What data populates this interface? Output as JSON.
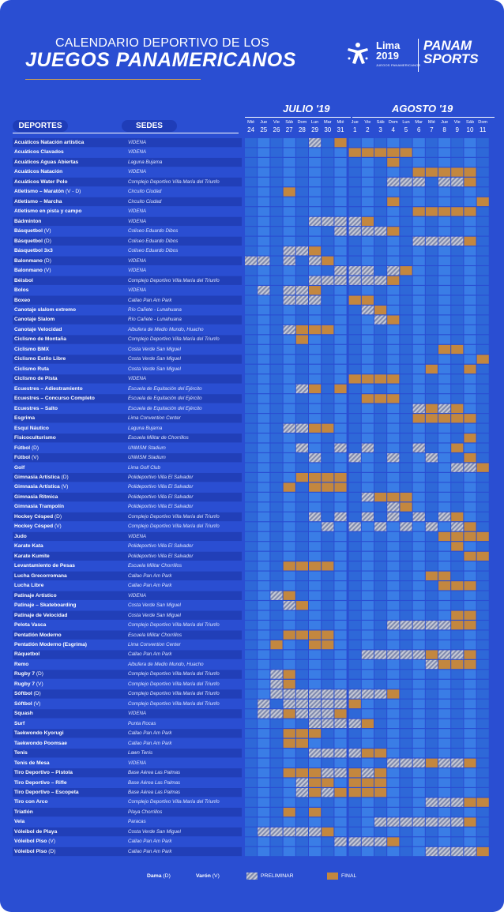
{
  "header": {
    "line1": "CALENDARIO DEPORTIVO  DE LOS",
    "line2": "JUEGOS PANAMERICANOS"
  },
  "logos": {
    "lima_word": "Lima",
    "lima_year": "2019",
    "lima_sub": "JUEGOS PANAMERICANOS",
    "panam_1": "PANAM",
    "panam_2": "SPORTS"
  },
  "months": {
    "july": "JULIO '19",
    "august": "AGOSTO '19"
  },
  "columns": {
    "sports": "DEPORTES",
    "venues": "SEDES"
  },
  "legend": {
    "dama_label": "Dama",
    "dama_code": "(D)",
    "varon_label": "Varón",
    "varon_code": "(V)",
    "preliminar": "PRELIMINAR",
    "final": "FINAL"
  },
  "colors": {
    "background": "#2a4ed2",
    "row_dark": "#213fb8",
    "cell_a": "#2e68d8",
    "cell_b": "#3a7de6",
    "final": "#c3873f",
    "preliminar_stripe": "#a0a4b6",
    "accent": "#d7a24a"
  },
  "chart_data": {
    "type": "table",
    "days": [
      {
        "dow": "Mié",
        "n": "24"
      },
      {
        "dow": "Jue",
        "n": "25"
      },
      {
        "dow": "Vie",
        "n": "26"
      },
      {
        "dow": "Sáb",
        "n": "27"
      },
      {
        "dow": "Dom",
        "n": "28"
      },
      {
        "dow": "Lun",
        "n": "29"
      },
      {
        "dow": "Mar",
        "n": "30"
      },
      {
        "dow": "Mié",
        "n": "31"
      },
      {
        "dow": "Jue",
        "n": "1"
      },
      {
        "dow": "Vie",
        "n": "2"
      },
      {
        "dow": "Sáb",
        "n": "3"
      },
      {
        "dow": "Dom",
        "n": "4"
      },
      {
        "dow": "Lun",
        "n": "5"
      },
      {
        "dow": "Mar",
        "n": "6"
      },
      {
        "dow": "Mié",
        "n": "7"
      },
      {
        "dow": "Jue",
        "n": "8"
      },
      {
        "dow": "Vie",
        "n": "9"
      },
      {
        "dow": "Sáb",
        "n": "10"
      },
      {
        "dow": "Dom",
        "n": "11"
      }
    ],
    "rows": [
      {
        "sport": "Acuáticos Natación artística",
        "venue": "VIDENA",
        "p": [
          5
        ],
        "f": [
          7
        ]
      },
      {
        "sport": "Acuáticos Clavados",
        "venue": "VIDENA",
        "p": [],
        "f": [
          8,
          9,
          10,
          11,
          12
        ]
      },
      {
        "sport": "Acuáticos Aguas Abiertas",
        "venue": "Laguna Bujama",
        "p": [],
        "f": [
          11
        ]
      },
      {
        "sport": "Acuáticos Natación",
        "venue": "VIDENA",
        "p": [],
        "f": [
          13,
          14,
          15,
          16,
          17
        ]
      },
      {
        "sport": "Acuáticos Water Polo",
        "venue": "Complejo Deportivo Villa María del Triunfo",
        "p": [
          11,
          12,
          13,
          15,
          16
        ],
        "f": [
          17
        ]
      },
      {
        "sport": "Atletismo – Maratón",
        "g": "(V - D)",
        "venue": "Circuito Ciudad",
        "p": [],
        "f": [
          3
        ]
      },
      {
        "sport": "Atletismo – Marcha",
        "venue": "Circuito Ciudad",
        "p": [],
        "f": [
          11,
          18
        ]
      },
      {
        "sport": "Atletismo en pista y campo",
        "venue": "VIDENA",
        "p": [],
        "f": [
          13,
          14,
          15,
          16,
          17
        ]
      },
      {
        "sport": "Bádminton",
        "venue": "VIDENA",
        "p": [
          5,
          6,
          7,
          8
        ],
        "f": [
          9
        ]
      },
      {
        "sport": "Básquetbol",
        "g": "(V)",
        "venue": "Coliseo Eduardo Dibos",
        "p": [
          7,
          8,
          9,
          10
        ],
        "f": [
          11
        ]
      },
      {
        "sport": "Básquetbol",
        "g": "(D)",
        "venue": "Coliseo Eduardo Dibos",
        "p": [
          13,
          14,
          15,
          16
        ],
        "f": [
          17
        ]
      },
      {
        "sport": "Básquetbol 3x3",
        "venue": "Coliseo Eduardo Dibos",
        "p": [
          3,
          4
        ],
        "f": [
          5
        ]
      },
      {
        "sport": "Balonmano",
        "g": "(D)",
        "venue": "VIDENA",
        "p": [
          0,
          1,
          3,
          5
        ],
        "f": [
          6
        ]
      },
      {
        "sport": "Balonmano",
        "g": "(V)",
        "venue": "VIDENA",
        "p": [
          7,
          8,
          9,
          11
        ],
        "f": [
          12
        ]
      },
      {
        "sport": "Béisbol",
        "venue": "Complejo Deportivo Villa María del Triunfo",
        "p": [
          5,
          6,
          7,
          8,
          9,
          10
        ],
        "f": [
          11
        ]
      },
      {
        "sport": "Bolos",
        "venue": "VIDENA",
        "p": [
          1,
          3,
          4
        ],
        "f": [
          5
        ]
      },
      {
        "sport": "Boxeo",
        "venue": "Callao Pan Am Park",
        "p": [
          3,
          4,
          5
        ],
        "f": [
          8,
          9
        ]
      },
      {
        "sport": "Canotaje slalom extremo",
        "venue": "Río Cañete - Lunahuana",
        "p": [
          9
        ],
        "f": [
          10
        ]
      },
      {
        "sport": "Canotaje Slalom",
        "venue": "Río Cañete - Lunahuana",
        "p": [
          10
        ],
        "f": [
          11
        ]
      },
      {
        "sport": "Canotaje Velocidad",
        "venue": "Albufera de Medio Mundo, Huacho",
        "p": [
          3
        ],
        "f": [
          4,
          5,
          6
        ]
      },
      {
        "sport": "Ciclismo de Montaña",
        "venue": "Complejo Deportivo Villa María del Triunfo",
        "p": [],
        "f": [
          4
        ]
      },
      {
        "sport": "Ciclismo BMX",
        "venue": "Costa Verde San Miguel",
        "p": [],
        "f": [
          15,
          16
        ]
      },
      {
        "sport": "Ciclismo Estilo Libre",
        "venue": "Costa Verde San Miguel",
        "p": [],
        "f": [
          18
        ]
      },
      {
        "sport": "Ciclismo Ruta",
        "venue": "Costa Verde San Miguel",
        "p": [],
        "f": [
          14,
          17
        ]
      },
      {
        "sport": "Ciclismo de Pista",
        "venue": "VIDENA",
        "p": [],
        "f": [
          8,
          9,
          10,
          11
        ]
      },
      {
        "sport": "Ecuestres – Adiestramiento",
        "venue": "Escuela de Equitación del Ejército",
        "p": [
          4
        ],
        "f": [
          5,
          7
        ]
      },
      {
        "sport": "Ecuestres – Concurso Completo",
        "venue": "Escuela de Equitación del Ejército",
        "p": [],
        "f": [
          9,
          10,
          11
        ]
      },
      {
        "sport": "Ecuestres – Salto",
        "venue": "Escuela de Equitación del Ejército",
        "p": [
          13,
          15
        ],
        "f": [
          14,
          16
        ]
      },
      {
        "sport": "Esgrima",
        "venue": "Lima Convention Center",
        "p": [],
        "f": [
          13,
          14,
          15,
          16,
          17
        ]
      },
      {
        "sport": "Esquí Náutico",
        "venue": "Laguna Bujama",
        "p": [
          3,
          4
        ],
        "f": [
          5,
          6
        ]
      },
      {
        "sport": "Fisicoculturismo",
        "venue": "Escuela Militar de Chorrillos",
        "p": [],
        "f": [
          17
        ]
      },
      {
        "sport": "Fútbol",
        "g": "(D)",
        "venue": "UNMSM Stadium",
        "p": [
          4,
          7,
          9,
          13
        ],
        "f": [
          16
        ]
      },
      {
        "sport": "Fútbol",
        "g": "(V)",
        "venue": "UNMSM Stadium",
        "p": [
          5,
          8,
          11,
          14
        ],
        "f": [
          17
        ]
      },
      {
        "sport": "Golf",
        "venue": "Lima Golf Club",
        "p": [
          16,
          17
        ],
        "f": [
          18
        ]
      },
      {
        "sport": "Gimnasia Artística",
        "g": "(D)",
        "venue": "Polideportivo Villa El Salvador",
        "p": [],
        "f": [
          4,
          5,
          6,
          7
        ]
      },
      {
        "sport": "Gimnasia Artística",
        "g": "(V)",
        "venue": "Polideportivo Villa El Salvador",
        "p": [],
        "f": [
          3,
          5,
          6,
          7
        ]
      },
      {
        "sport": "Gimnasia Rítmica",
        "venue": "Polideportivo Villa El Salvador",
        "p": [
          9
        ],
        "f": [
          10,
          11,
          12
        ]
      },
      {
        "sport": "Gimnasia Trampolín",
        "venue": "Polideportivo Villa El Salvador",
        "p": [
          11
        ],
        "f": [
          12
        ]
      },
      {
        "sport": "Hockey Césped",
        "g": "(D)",
        "venue": "Complejo Deportivo Villa María del Triunfo",
        "p": [
          5,
          7,
          9,
          11,
          13,
          15
        ],
        "f": [
          16
        ]
      },
      {
        "sport": "Hockey Césped",
        "g": "(V)",
        "venue": "Complejo Deportivo Villa María del Triunfo",
        "p": [
          6,
          8,
          10,
          12,
          14,
          16
        ],
        "f": [
          17
        ]
      },
      {
        "sport": "Judo",
        "venue": "VIDENA",
        "p": [],
        "f": [
          15,
          16,
          17,
          18
        ]
      },
      {
        "sport": "Karate Kata",
        "venue": "Polideportivo Villa El Salvador",
        "p": [],
        "f": [
          16
        ]
      },
      {
        "sport": "Karate Kumite",
        "venue": "Polideportivo Villa El Salvador",
        "p": [],
        "f": [
          17,
          18
        ]
      },
      {
        "sport": "Levantamiento de Pesas",
        "venue": "Escuela Militar Chorrillos",
        "p": [],
        "f": [
          3,
          4,
          5,
          6
        ]
      },
      {
        "sport": "Lucha Grecorromana",
        "venue": "Callao Pan Am Park",
        "p": [],
        "f": [
          14,
          15
        ]
      },
      {
        "sport": "Lucha Libre",
        "venue": "Callao Pan Am Park",
        "p": [],
        "f": [
          15,
          16,
          17
        ]
      },
      {
        "sport": "Patinaje Artístico",
        "venue": "VIDENA",
        "p": [
          2
        ],
        "f": [
          3
        ]
      },
      {
        "sport": "Patinaje – Skateboarding",
        "venue": "Costa Verde San Miguel",
        "p": [
          3
        ],
        "f": [
          4
        ]
      },
      {
        "sport": "Patinaje de Velocidad",
        "venue": "Costa Verde San Miguel",
        "p": [],
        "f": [
          16,
          17
        ]
      },
      {
        "sport": "Pelota Vasca",
        "venue": "Complejo Deportivo Villa María del Triunfo",
        "p": [
          11,
          12,
          13,
          14,
          15
        ],
        "f": [
          16,
          17
        ]
      },
      {
        "sport": "Pentatlón Moderno",
        "venue": "Escuela Militar Chorrillos",
        "p": [],
        "f": [
          3,
          4,
          5,
          6
        ]
      },
      {
        "sport": "Pentatlón Moderno (Esgrima)",
        "venue": "Lima Convention Center",
        "p": [],
        "f": [
          2,
          5,
          6
        ]
      },
      {
        "sport": "Ráquetbol",
        "venue": "Callao Pan Am Park",
        "p": [
          9,
          10,
          11,
          12,
          13,
          15,
          16
        ],
        "f": [
          14,
          17
        ]
      },
      {
        "sport": "Remo",
        "venue": "Albufera de Medio Mundo, Huacho",
        "p": [
          14
        ],
        "f": [
          15,
          16,
          17
        ]
      },
      {
        "sport": "Rugby 7",
        "g": "(D)",
        "venue": "Complejo Deportivo Villa María del Triunfo",
        "p": [
          2
        ],
        "f": [
          3
        ]
      },
      {
        "sport": "Rugby 7",
        "g": "(V)",
        "venue": "Complejo Deportivo Villa María del Triunfo",
        "p": [
          2
        ],
        "f": [
          3
        ]
      },
      {
        "sport": "Sóftbol",
        "g": "(D)",
        "venue": "Complejo Deportivo Villa María del Triunfo",
        "p": [
          2,
          3,
          4,
          5,
          6,
          7,
          8,
          9,
          10
        ],
        "f": [
          11
        ]
      },
      {
        "sport": "Sóftbol",
        "g": "(V)",
        "venue": "Complejo Deportivo Villa María del Triunfo",
        "p": [
          1,
          3,
          4,
          5,
          6,
          7
        ],
        "f": [
          8
        ]
      },
      {
        "sport": "Squash",
        "venue": "VIDENA",
        "p": [
          1,
          2,
          4,
          5,
          6
        ],
        "f": [
          3,
          7
        ]
      },
      {
        "sport": "Surf",
        "venue": "Punta Rocas",
        "p": [
          5,
          6,
          7,
          8
        ],
        "f": [
          9
        ]
      },
      {
        "sport": "Taekwondo Kyorugi",
        "venue": "Callao Pan Am Park",
        "p": [],
        "f": [
          3,
          4,
          5
        ]
      },
      {
        "sport": "Taekwondo Poomsae",
        "venue": "Callao Pan Am Park",
        "p": [],
        "f": [
          3,
          4
        ]
      },
      {
        "sport": "Tenis",
        "venue": "Lawn Tenis",
        "p": [
          5,
          6,
          7,
          8
        ],
        "f": [
          9,
          10
        ]
      },
      {
        "sport": "Tenis de Mesa",
        "venue": "VIDENA",
        "p": [
          11,
          12,
          13,
          15,
          16
        ],
        "f": [
          14,
          17
        ]
      },
      {
        "sport": "Tiro Deportivo – Pistola",
        "venue": "Base Aérea Las Palmas",
        "p": [
          6,
          7,
          9
        ],
        "f": [
          3,
          4,
          5,
          8,
          10
        ]
      },
      {
        "sport": "Tiro Deportivo – Rifle",
        "venue": "Base Aérea Las Palmas",
        "p": [
          4
        ],
        "f": [
          5,
          6,
          8,
          9,
          10
        ]
      },
      {
        "sport": "Tiro Deportivo – Escopeta",
        "venue": "Base Aérea Las Palmas",
        "p": [
          4,
          6
        ],
        "f": [
          5,
          7,
          8,
          9,
          10
        ]
      },
      {
        "sport": "Tiro con Arco",
        "venue": "Complejo Deportivo Villa María del Triunfo",
        "p": [
          14,
          15,
          16
        ],
        "f": [
          17,
          18
        ]
      },
      {
        "sport": "Triatlón",
        "venue": "Playa Chorrillos",
        "p": [],
        "f": [
          3,
          5
        ]
      },
      {
        "sport": "Vela",
        "venue": "Paracas",
        "p": [
          10,
          11,
          12,
          13,
          14,
          15,
          16
        ],
        "f": [
          17
        ]
      },
      {
        "sport": "Vóleibol de Playa",
        "venue": "Costa Verde San Miguel",
        "p": [
          1,
          2,
          3,
          4,
          5
        ],
        "f": [
          6
        ]
      },
      {
        "sport": "Vóleibol Piso",
        "g": "(V)",
        "venue": "Callao Pan Am Park",
        "p": [
          7,
          8,
          9,
          10
        ],
        "f": [
          11
        ]
      },
      {
        "sport": "Vóleibol Piso",
        "g": "(D)",
        "venue": "Callao Pan Am Park",
        "p": [
          14,
          15,
          16,
          17
        ],
        "f": [
          18
        ]
      }
    ]
  }
}
